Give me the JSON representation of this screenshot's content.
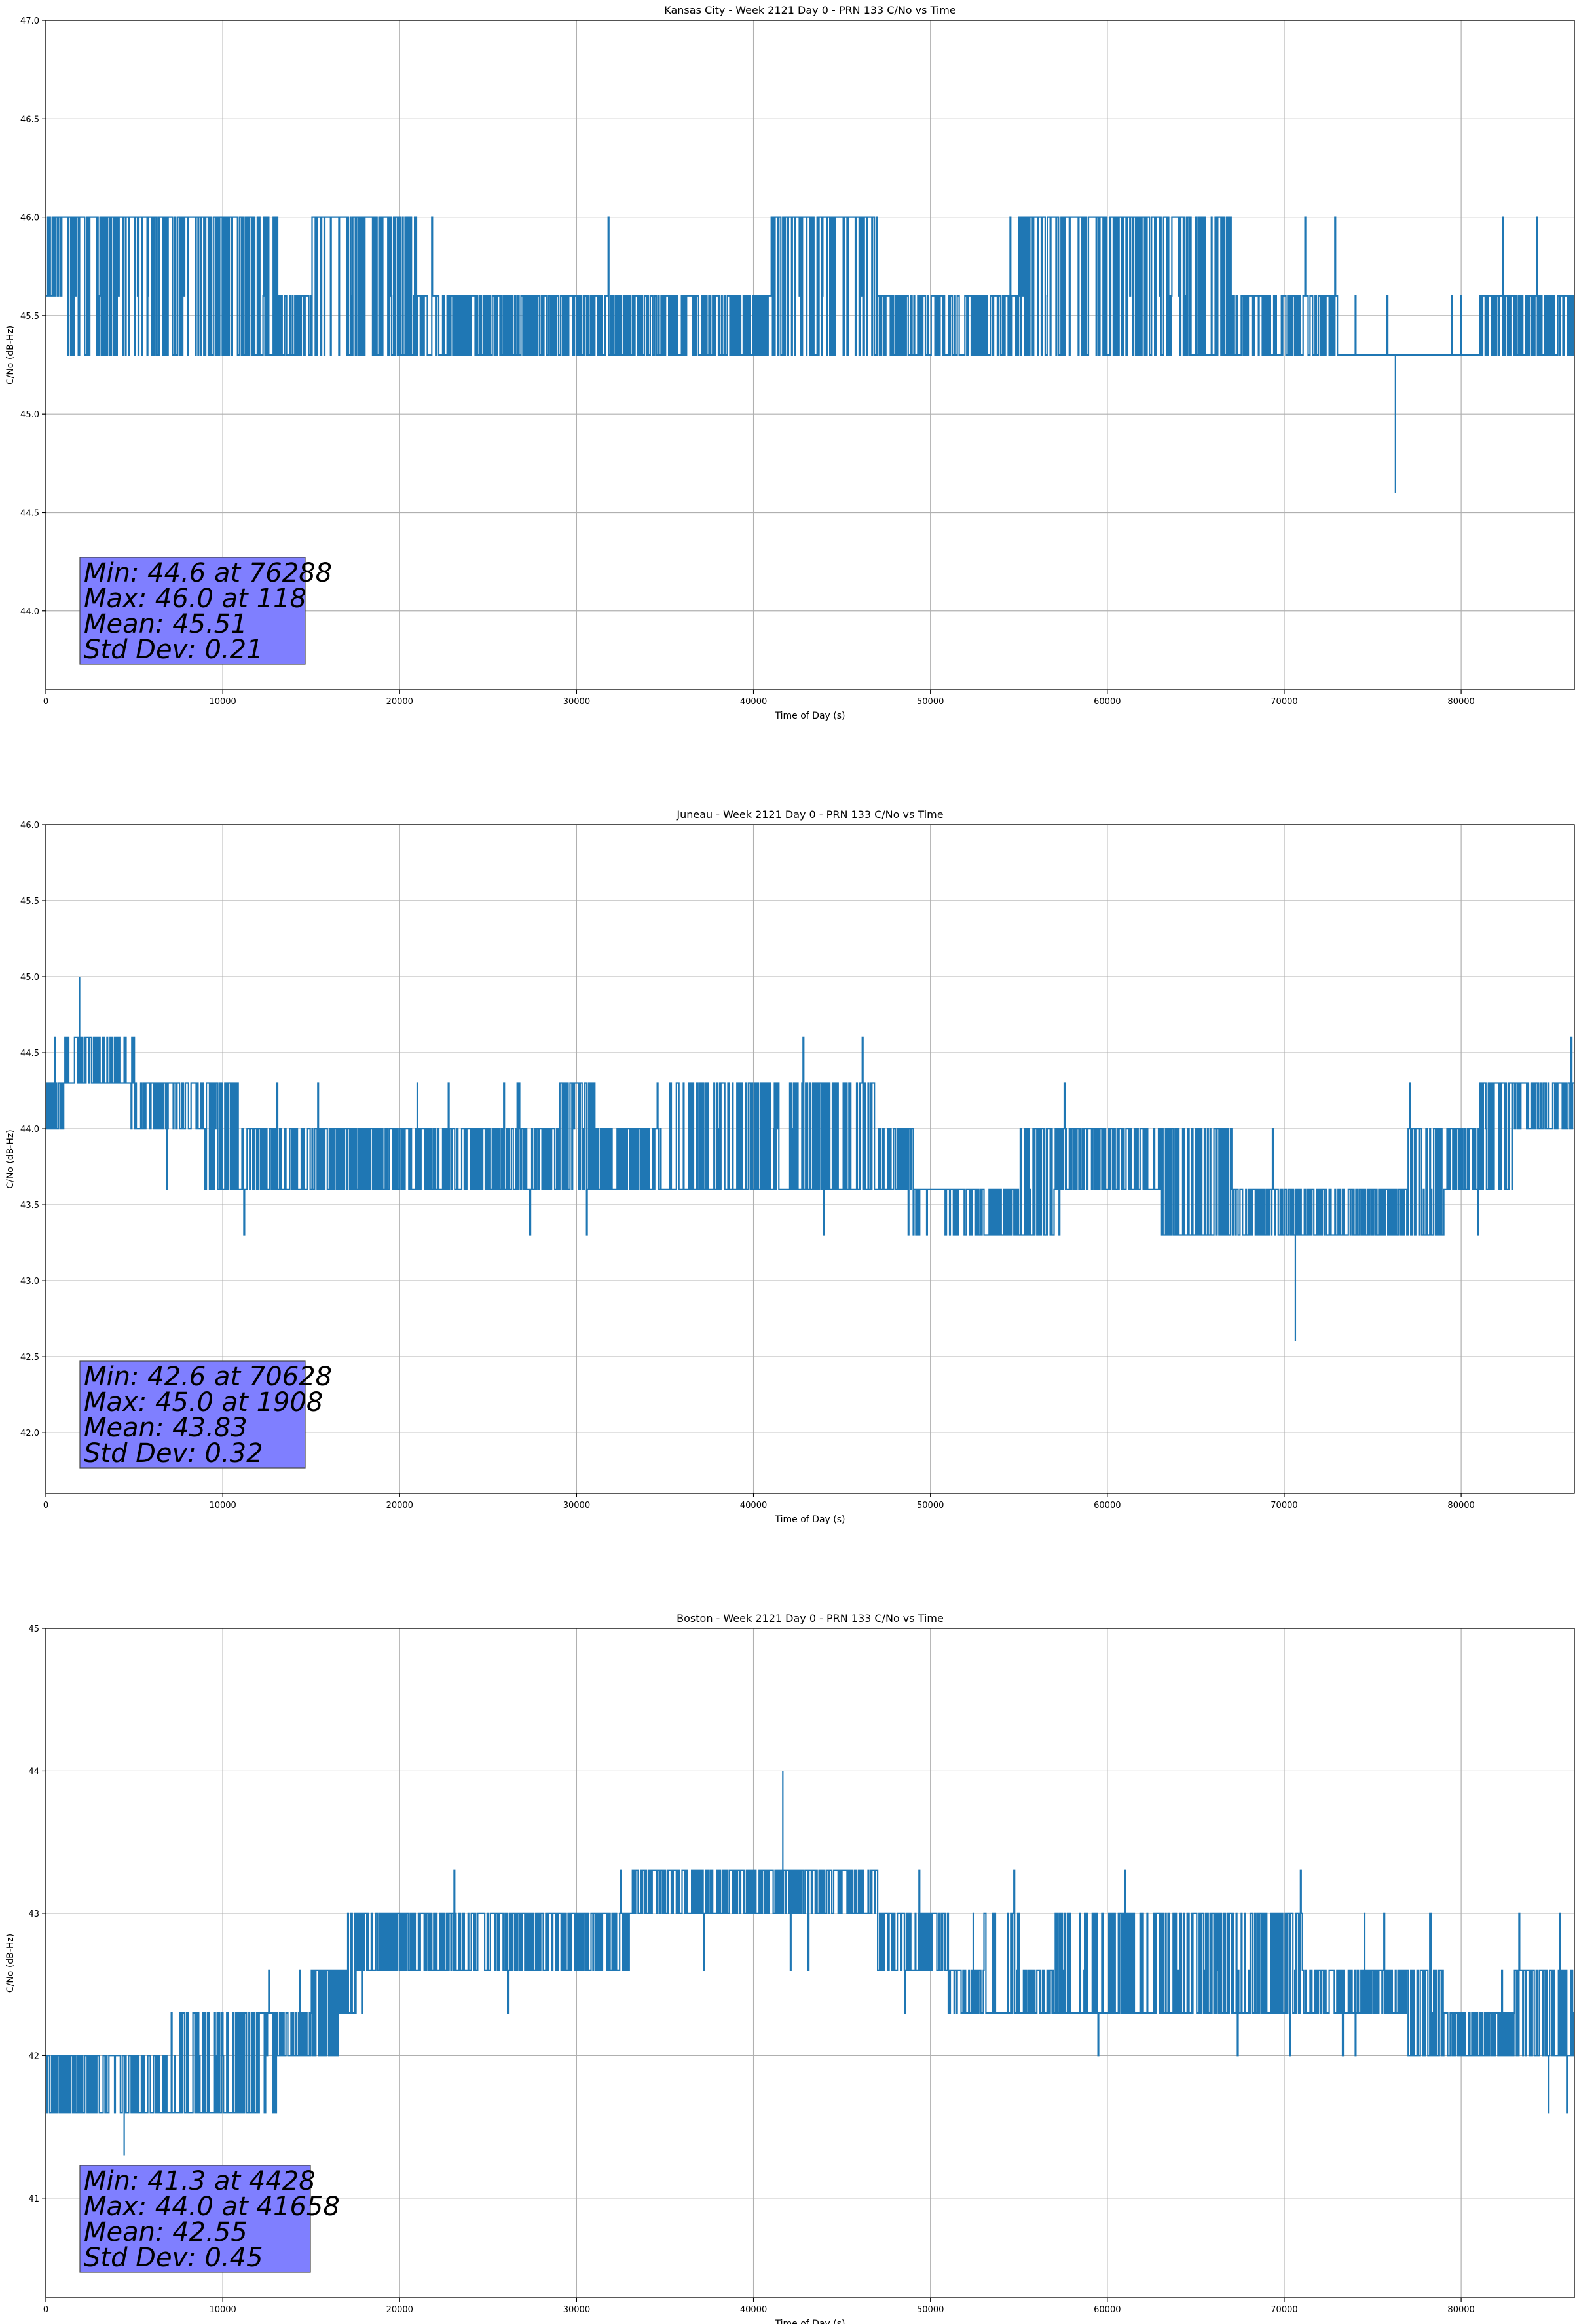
{
  "chart_data": [
    {
      "type": "line",
      "title": "Kansas City - Week 2121 Day 0 - PRN 133 C/No vs Time",
      "xlabel": "Time of Day (s)",
      "ylabel": "C/No (dB-Hz)",
      "xlim": [
        0,
        86400
      ],
      "ylim": [
        43.6,
        47.0
      ],
      "xticks": [
        0,
        10000,
        20000,
        30000,
        40000,
        50000,
        60000,
        70000,
        80000
      ],
      "xtick_labels": [
        "0",
        "10000",
        "20000",
        "30000",
        "40000",
        "50000",
        "60000",
        "70000",
        "80000"
      ],
      "yticks": [
        44.0,
        44.5,
        45.0,
        45.5,
        46.0,
        46.5,
        47.0
      ],
      "ytick_labels": [
        "44.0",
        "44.5",
        "45.0",
        "45.5",
        "46.0",
        "46.5",
        "47.0"
      ],
      "grid": true,
      "color": "#1f77b4",
      "levels": [
        45.3,
        45.6,
        46.0
      ],
      "series": [
        {
          "x": [
            0,
            2000,
            4000,
            6000,
            8000,
            10000,
            12000,
            14000,
            16000,
            18000,
            20000,
            22000,
            24000,
            26000,
            28000,
            30000,
            32000,
            34000,
            36000,
            38000,
            40000,
            42000,
            44000,
            46000,
            48000,
            50000,
            52000,
            54000,
            56000,
            58000,
            60000,
            62000,
            64000,
            66000,
            68000,
            70000,
            72000,
            74000,
            76000,
            78000,
            80000,
            82000,
            84000,
            86400
          ],
          "y": [
            45.8,
            45.8,
            45.8,
            45.8,
            45.8,
            45.8,
            45.6,
            45.45,
            45.8,
            45.8,
            45.6,
            45.45,
            45.45,
            45.45,
            45.45,
            45.45,
            45.45,
            45.45,
            45.45,
            45.45,
            45.45,
            45.8,
            45.8,
            45.8,
            45.45,
            45.45,
            45.45,
            45.45,
            45.8,
            45.8,
            45.8,
            45.8,
            45.8,
            45.6,
            45.45,
            45.45,
            45.3,
            45.15,
            45.15,
            45.15,
            45.15,
            45.3,
            45.45,
            45.45
          ],
          "band_low": [
            45.6,
            45.3,
            45.3,
            45.3,
            45.3,
            45.3,
            45.3,
            45.3,
            45.3,
            45.3,
            45.3,
            45.3,
            45.3,
            45.3,
            45.3,
            45.3,
            45.3,
            45.3,
            45.3,
            45.3,
            45.3,
            45.3,
            45.3,
            45.3,
            45.3,
            45.3,
            45.3,
            45.3,
            45.3,
            45.3,
            45.3,
            45.3,
            45.3,
            45.3,
            45.3,
            45.3,
            45.0,
            45.0,
            45.0,
            45.0,
            45.0,
            45.0,
            45.3,
            45.3
          ],
          "band_high": [
            46.0,
            46.0,
            46.0,
            46.0,
            46.0,
            46.0,
            46.0,
            45.6,
            46.0,
            46.0,
            46.0,
            45.6,
            45.6,
            45.6,
            45.6,
            45.6,
            45.6,
            45.6,
            45.6,
            45.6,
            45.6,
            46.0,
            46.0,
            46.0,
            45.6,
            45.6,
            45.6,
            45.6,
            46.0,
            46.0,
            46.0,
            46.0,
            46.0,
            46.0,
            45.6,
            45.6,
            45.6,
            45.3,
            45.3,
            45.3,
            45.3,
            45.6,
            45.6,
            45.6
          ]
        }
      ],
      "extremes": [
        {
          "x": 76288,
          "y": 44.6
        },
        {
          "x": 118,
          "y": 46.0
        }
      ],
      "stats": {
        "min": "Min: 44.6 at 76288",
        "max": "Max: 46.0 at 118",
        "mean": "Mean: 45.51",
        "std": "Std Dev: 0.21"
      }
    },
    {
      "type": "line",
      "title": "Juneau - Week 2121 Day 0 - PRN 133 C/No vs Time",
      "xlabel": "Time of Day (s)",
      "ylabel": "C/No (dB-Hz)",
      "xlim": [
        0,
        86400
      ],
      "ylim": [
        41.6,
        46.0
      ],
      "xticks": [
        0,
        10000,
        20000,
        30000,
        40000,
        50000,
        60000,
        70000,
        80000
      ],
      "xtick_labels": [
        "0",
        "10000",
        "20000",
        "30000",
        "40000",
        "50000",
        "60000",
        "70000",
        "80000"
      ],
      "yticks": [
        42.0,
        42.5,
        43.0,
        43.5,
        44.0,
        44.5,
        45.0,
        45.5,
        46.0
      ],
      "ytick_labels": [
        "42.0",
        "42.5",
        "43.0",
        "43.5",
        "44.0",
        "44.5",
        "45.0",
        "45.5",
        "46.0"
      ],
      "grid": true,
      "color": "#1f77b4",
      "levels": [
        43.3,
        43.6,
        44.0,
        44.3,
        44.6
      ],
      "series": [
        {
          "x": [
            0,
            2000,
            4000,
            6000,
            8000,
            10000,
            12000,
            14000,
            16000,
            18000,
            20000,
            22000,
            24000,
            26000,
            28000,
            30000,
            32000,
            34000,
            36000,
            38000,
            40000,
            42000,
            44000,
            46000,
            48000,
            50000,
            52000,
            54000,
            56000,
            58000,
            60000,
            62000,
            64000,
            66000,
            68000,
            70000,
            72000,
            74000,
            76000,
            78000,
            80000,
            82000,
            84000,
            86400
          ],
          "y": [
            44.15,
            44.4,
            44.4,
            44.15,
            44.15,
            44.0,
            43.8,
            43.8,
            43.8,
            43.8,
            43.8,
            43.8,
            43.8,
            43.8,
            43.8,
            44.0,
            43.8,
            43.8,
            43.8,
            43.8,
            43.8,
            43.8,
            43.8,
            43.8,
            43.8,
            43.6,
            43.45,
            43.45,
            43.6,
            43.8,
            43.8,
            43.8,
            43.6,
            43.6,
            43.45,
            43.45,
            43.45,
            43.45,
            43.45,
            43.6,
            43.8,
            44.0,
            44.15,
            44.15
          ],
          "band_low": [
            44.0,
            44.3,
            44.3,
            44.0,
            44.0,
            43.6,
            43.6,
            43.6,
            43.6,
            43.6,
            43.6,
            43.6,
            43.6,
            43.6,
            43.6,
            43.6,
            43.6,
            43.6,
            43.6,
            43.6,
            43.6,
            43.6,
            43.6,
            43.6,
            43.6,
            43.3,
            43.3,
            43.3,
            43.3,
            43.6,
            43.6,
            43.6,
            43.3,
            43.3,
            43.3,
            43.3,
            43.3,
            43.3,
            43.3,
            43.3,
            43.6,
            43.6,
            44.0,
            44.0
          ],
          "band_high": [
            44.3,
            44.6,
            44.6,
            44.3,
            44.3,
            44.3,
            44.0,
            44.0,
            44.0,
            44.0,
            44.0,
            44.0,
            44.0,
            44.0,
            44.0,
            44.3,
            44.0,
            44.0,
            44.3,
            44.3,
            44.3,
            44.3,
            44.3,
            44.3,
            44.0,
            43.6,
            43.6,
            43.6,
            44.0,
            44.0,
            44.0,
            44.0,
            44.0,
            44.0,
            43.6,
            43.6,
            43.6,
            43.6,
            43.6,
            44.0,
            44.0,
            44.3,
            44.3,
            44.3
          ]
        }
      ],
      "extremes": [
        {
          "x": 70628,
          "y": 42.6
        },
        {
          "x": 1908,
          "y": 45.0
        }
      ],
      "stats": {
        "min": "Min: 42.6 at 70628",
        "max": "Max: 45.0 at 1908",
        "mean": "Mean: 43.83",
        "std": "Std Dev: 0.32"
      }
    },
    {
      "type": "line",
      "title": "Boston - Week 2121 Day 0 - PRN 133 C/No vs Time",
      "xlabel": "Time of Day (s)",
      "ylabel": "C/No (dB-Hz)",
      "xlim": [
        0,
        86400
      ],
      "ylim": [
        40.3,
        45.0
      ],
      "xticks": [
        0,
        10000,
        20000,
        30000,
        40000,
        50000,
        60000,
        70000,
        80000
      ],
      "xtick_labels": [
        "0",
        "10000",
        "20000",
        "30000",
        "40000",
        "50000",
        "60000",
        "70000",
        "80000"
      ],
      "yticks": [
        41,
        42,
        43,
        44,
        45
      ],
      "ytick_labels": [
        "41",
        "42",
        "43",
        "44",
        "45"
      ],
      "grid": true,
      "color": "#1f77b4",
      "levels": [
        41.6,
        42.0,
        42.3,
        42.6,
        43.0,
        43.3,
        43.6
      ],
      "series": [
        {
          "x": [
            0,
            2000,
            4000,
            6000,
            8000,
            10000,
            12000,
            14000,
            16000,
            18000,
            20000,
            22000,
            24000,
            26000,
            28000,
            30000,
            32000,
            34000,
            36000,
            38000,
            40000,
            42000,
            44000,
            46000,
            48000,
            50000,
            52000,
            54000,
            56000,
            58000,
            60000,
            62000,
            64000,
            66000,
            68000,
            70000,
            72000,
            74000,
            76000,
            78000,
            80000,
            82000,
            84000,
            86400
          ],
          "y": [
            41.8,
            41.8,
            41.8,
            41.8,
            41.8,
            41.8,
            42.0,
            42.15,
            42.3,
            42.8,
            42.8,
            42.8,
            42.8,
            42.8,
            42.8,
            42.8,
            42.8,
            43.15,
            43.15,
            43.15,
            43.15,
            43.15,
            43.15,
            43.15,
            42.8,
            42.8,
            42.45,
            42.45,
            42.45,
            42.45,
            42.6,
            42.6,
            42.6,
            42.6,
            42.6,
            42.6,
            42.45,
            42.45,
            42.45,
            42.3,
            42.15,
            42.15,
            42.3,
            42.3
          ],
          "band_low": [
            41.6,
            41.6,
            41.6,
            41.6,
            41.6,
            41.6,
            41.6,
            42.0,
            42.0,
            42.6,
            42.6,
            42.6,
            42.6,
            42.6,
            42.6,
            42.6,
            42.6,
            43.0,
            43.0,
            43.0,
            43.0,
            43.0,
            43.0,
            43.0,
            42.6,
            42.6,
            42.3,
            42.3,
            42.3,
            42.3,
            42.3,
            42.3,
            42.3,
            42.3,
            42.3,
            42.3,
            42.3,
            42.3,
            42.3,
            42.0,
            42.0,
            42.0,
            42.0,
            42.0
          ],
          "band_high": [
            42.0,
            42.0,
            42.0,
            42.0,
            42.3,
            42.3,
            42.3,
            42.3,
            42.6,
            43.0,
            43.0,
            43.0,
            43.0,
            43.0,
            43.0,
            43.0,
            43.0,
            43.3,
            43.3,
            43.3,
            43.3,
            43.3,
            43.3,
            43.3,
            43.0,
            43.0,
            42.6,
            43.0,
            42.6,
            43.0,
            43.0,
            43.0,
            43.0,
            43.0,
            43.0,
            43.0,
            42.6,
            42.6,
            42.6,
            42.6,
            42.3,
            42.3,
            42.6,
            42.6
          ]
        }
      ],
      "extremes": [
        {
          "x": 4428,
          "y": 41.3
        },
        {
          "x": 41658,
          "y": 44.0
        }
      ],
      "stats": {
        "min": "Min: 41.3 at 4428",
        "max": "Max: 44.0 at 41658",
        "mean": "Mean: 42.55",
        "std": "Std Dev: 0.45"
      }
    }
  ]
}
